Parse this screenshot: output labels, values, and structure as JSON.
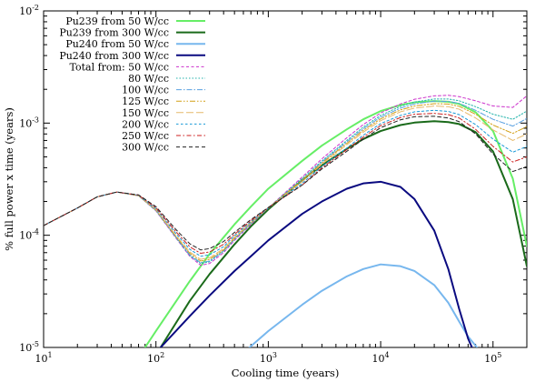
{
  "chart_data": {
    "type": "line",
    "xlabel": "Cooling time (years)",
    "ylabel": "% full power x time (years)",
    "xscale": "log",
    "yscale": "log",
    "xlim": [
      10,
      200000
    ],
    "ylim": [
      1e-05,
      0.01
    ],
    "x_ticks": [
      {
        "value": 10,
        "base": "10",
        "exp": "1"
      },
      {
        "value": 100,
        "base": "10",
        "exp": "2"
      },
      {
        "value": 1000,
        "base": "10",
        "exp": "3"
      },
      {
        "value": 10000,
        "base": "10",
        "exp": "4"
      },
      {
        "value": 100000,
        "base": "10",
        "exp": "5"
      }
    ],
    "y_ticks": [
      {
        "value": 1e-05,
        "base": "10",
        "exp": "-5"
      },
      {
        "value": 0.0001,
        "base": "10",
        "exp": "-4"
      },
      {
        "value": 0.001,
        "base": "10",
        "exp": "-3"
      },
      {
        "value": 0.01,
        "base": "10",
        "exp": "-2"
      }
    ],
    "grid": false,
    "legend_position": "top-left",
    "series": [
      {
        "name": "Pu239 from 50 W/cc",
        "color": "#66ee66",
        "dash": "solid",
        "width": 2,
        "x": [
          80,
          100,
          200,
          300,
          500,
          700,
          1000,
          2000,
          3000,
          5000,
          7000,
          10000,
          15000,
          20000,
          30000,
          40000,
          50000,
          70000,
          100000,
          150000,
          200000
        ],
        "y": [
          1e-05,
          1.4e-05,
          3.9e-05,
          6.8e-05,
          0.000125,
          0.00018,
          0.00026,
          0.00046,
          0.00063,
          0.00088,
          0.00108,
          0.00128,
          0.00145,
          0.00153,
          0.00157,
          0.00155,
          0.00148,
          0.00125,
          0.00085,
          0.00032,
          8e-05
        ]
      },
      {
        "name": "Pu239 from 300 W/cc",
        "color": "#1a6a1a",
        "dash": "solid",
        "width": 2,
        "x": [
          110,
          200,
          300,
          500,
          700,
          1000,
          2000,
          3000,
          5000,
          7000,
          10000,
          15000,
          20000,
          30000,
          40000,
          50000,
          70000,
          100000,
          150000,
          200000
        ],
        "y": [
          1e-05,
          2.6e-05,
          4.5e-05,
          8.3e-05,
          0.00012,
          0.00017,
          0.00031,
          0.00042,
          0.00059,
          0.00072,
          0.00085,
          0.00096,
          0.00101,
          0.00104,
          0.00102,
          0.00098,
          0.00083,
          0.00056,
          0.00021,
          5.3e-05
        ]
      },
      {
        "name": "Pu240 from 50 W/cc",
        "color": "#77b7ee",
        "dash": "solid",
        "width": 2,
        "x": [
          680,
          1000,
          2000,
          3000,
          5000,
          7000,
          10000,
          15000,
          20000,
          30000,
          40000,
          50000,
          60000,
          72000
        ],
        "y": [
          1e-05,
          1.4e-05,
          2.4e-05,
          3.2e-05,
          4.3e-05,
          5e-05,
          5.5e-05,
          5.3e-05,
          4.8e-05,
          3.6e-05,
          2.5e-05,
          1.7e-05,
          1.25e-05,
          1e-05
        ]
      },
      {
        "name": "Pu240 from 300 W/cc",
        "color": "#0a0a80",
        "dash": "solid",
        "width": 2,
        "x": [
          110,
          200,
          300,
          500,
          700,
          1000,
          2000,
          3000,
          5000,
          7000,
          10000,
          15000,
          20000,
          30000,
          40000,
          50000,
          60000,
          65000
        ],
        "y": [
          1e-05,
          1.9e-05,
          2.9e-05,
          4.8e-05,
          6.5e-05,
          9e-05,
          0.000155,
          0.0002,
          0.00026,
          0.00029,
          0.0003,
          0.00027,
          0.00021,
          0.00011,
          5e-05,
          2.2e-05,
          1.2e-05,
          1e-05
        ]
      },
      {
        "name": "Total from: 50 W/cc",
        "color": "#cc33cc",
        "dash": "3,2.5",
        "width": 1,
        "x": [
          10,
          20,
          30,
          45,
          70,
          100,
          150,
          200,
          250,
          300,
          400,
          500,
          700,
          1000,
          2000,
          3000,
          5000,
          7000,
          10000,
          15000,
          20000,
          30000,
          40000,
          50000,
          70000,
          100000,
          150000,
          200000
        ],
        "y": [
          0.000122,
          0.000175,
          0.00022,
          0.000243,
          0.000225,
          0.000165,
          9.5e-05,
          6.5e-05,
          5.4e-05,
          5.6e-05,
          7e-05,
          9e-05,
          0.000125,
          0.000175,
          0.00033,
          0.00048,
          0.00074,
          0.00097,
          0.00123,
          0.00148,
          0.00163,
          0.00175,
          0.00177,
          0.00172,
          0.00158,
          0.00142,
          0.00138,
          0.00175
        ]
      },
      {
        "name": "80 W/cc",
        "color": "#20b2aa",
        "dash": "1.5,2",
        "width": 1,
        "x": [
          10,
          20,
          30,
          45,
          70,
          100,
          150,
          200,
          250,
          300,
          400,
          500,
          700,
          1000,
          2000,
          3000,
          5000,
          7000,
          10000,
          15000,
          20000,
          30000,
          40000,
          50000,
          70000,
          100000,
          150000,
          200000
        ],
        "y": [
          0.000122,
          0.000175,
          0.00022,
          0.000243,
          0.000225,
          0.000166,
          9.6e-05,
          6.6e-05,
          5.6e-05,
          5.8e-05,
          7.2e-05,
          9.2e-05,
          0.000127,
          0.000175,
          0.00032,
          0.00046,
          0.0007,
          0.00092,
          0.00117,
          0.00141,
          0.00154,
          0.00164,
          0.00164,
          0.00158,
          0.0014,
          0.0012,
          0.00108,
          0.00128
        ]
      },
      {
        "name": "100 W/cc",
        "color": "#5aa0e0",
        "dash": "6,2,1.5,2",
        "width": 1,
        "x": [
          10,
          20,
          30,
          45,
          70,
          100,
          150,
          200,
          250,
          300,
          400,
          500,
          700,
          1000,
          2000,
          3000,
          5000,
          7000,
          10000,
          15000,
          20000,
          30000,
          40000,
          50000,
          70000,
          100000,
          150000,
          200000
        ],
        "y": [
          0.000122,
          0.000175,
          0.00022,
          0.000243,
          0.000225,
          0.000167,
          9.7e-05,
          6.7e-05,
          5.7e-05,
          5.9e-05,
          7.3e-05,
          9.3e-05,
          0.000128,
          0.000175,
          0.00031,
          0.00045,
          0.00068,
          0.00089,
          0.00113,
          0.00136,
          0.00148,
          0.00157,
          0.00156,
          0.0015,
          0.0013,
          0.00108,
          0.00094,
          0.0011
        ]
      },
      {
        "name": "125 W/cc",
        "color": "#d4a017",
        "dash": "6,2,1.5,2,1.5,2",
        "width": 1,
        "x": [
          10,
          20,
          30,
          45,
          70,
          100,
          150,
          200,
          250,
          300,
          400,
          500,
          700,
          1000,
          2000,
          3000,
          5000,
          7000,
          10000,
          15000,
          20000,
          30000,
          40000,
          50000,
          70000,
          100000,
          150000,
          200000
        ],
        "y": [
          0.000122,
          0.000175,
          0.00022,
          0.000243,
          0.000225,
          0.000168,
          9.8e-05,
          6.9e-05,
          5.9e-05,
          6.1e-05,
          7.4e-05,
          9.4e-05,
          0.000129,
          0.000175,
          0.00031,
          0.00044,
          0.00066,
          0.00086,
          0.00109,
          0.00131,
          0.00142,
          0.00149,
          0.00148,
          0.00141,
          0.0012,
          0.00096,
          0.00081,
          0.00093
        ]
      },
      {
        "name": "150 W/cc",
        "color": "#e6b96a",
        "dash": "8,3",
        "width": 1,
        "x": [
          10,
          20,
          30,
          45,
          70,
          100,
          150,
          200,
          250,
          300,
          400,
          500,
          700,
          1000,
          2000,
          3000,
          5000,
          7000,
          10000,
          15000,
          20000,
          30000,
          40000,
          50000,
          70000,
          100000,
          150000,
          200000
        ],
        "y": [
          0.000122,
          0.000175,
          0.00022,
          0.000243,
          0.000226,
          0.00017,
          0.0001,
          7.1e-05,
          6.1e-05,
          6.3e-05,
          7.6e-05,
          9.6e-05,
          0.00013,
          0.000175,
          0.0003,
          0.00043,
          0.00064,
          0.00083,
          0.00105,
          0.00126,
          0.00136,
          0.00142,
          0.0014,
          0.00133,
          0.00111,
          0.00087,
          0.0007,
          0.0008
        ]
      },
      {
        "name": "200 W/cc",
        "color": "#1a9ad8",
        "dash": "2.5,2.5",
        "width": 1,
        "x": [
          10,
          20,
          30,
          45,
          70,
          100,
          150,
          200,
          250,
          300,
          400,
          500,
          700,
          1000,
          2000,
          3000,
          5000,
          7000,
          10000,
          15000,
          20000,
          30000,
          40000,
          50000,
          70000,
          100000,
          150000,
          200000
        ],
        "y": [
          0.000122,
          0.000175,
          0.00022,
          0.000243,
          0.000227,
          0.000173,
          0.000104,
          7.5e-05,
          6.5e-05,
          6.7e-05,
          7.9e-05,
          9.9e-05,
          0.000132,
          0.000175,
          0.00029,
          0.00041,
          0.0006,
          0.00078,
          0.00099,
          0.00117,
          0.00126,
          0.0013,
          0.00127,
          0.00119,
          0.00097,
          0.00072,
          0.00055,
          0.00062
        ]
      },
      {
        "name": "250 W/cc",
        "color": "#cc2222",
        "dash": "5,2.5,1.5,2.5",
        "width": 1,
        "x": [
          10,
          20,
          30,
          45,
          70,
          100,
          150,
          200,
          250,
          300,
          400,
          500,
          700,
          1000,
          2000,
          3000,
          5000,
          7000,
          10000,
          15000,
          20000,
          30000,
          40000,
          50000,
          70000,
          100000,
          150000,
          200000
        ],
        "y": [
          0.000122,
          0.000175,
          0.00022,
          0.000243,
          0.000228,
          0.000176,
          0.000108,
          7.9e-05,
          6.9e-05,
          7.1e-05,
          8.3e-05,
          0.000102,
          0.000135,
          0.000176,
          0.00028,
          0.0004,
          0.00058,
          0.00075,
          0.00095,
          0.00112,
          0.0012,
          0.00122,
          0.00119,
          0.00111,
          0.00088,
          0.00062,
          0.00045,
          0.0005
        ]
      },
      {
        "name": "300 W/cc",
        "color": "#222222",
        "dash": "4,3",
        "width": 1,
        "x": [
          10,
          20,
          30,
          45,
          70,
          100,
          150,
          200,
          250,
          300,
          400,
          500,
          700,
          1000,
          2000,
          3000,
          5000,
          7000,
          10000,
          15000,
          20000,
          30000,
          40000,
          50000,
          70000,
          100000,
          150000,
          200000
        ],
        "y": [
          0.000122,
          0.000175,
          0.00022,
          0.000243,
          0.000229,
          0.00018,
          0.000113,
          8.4e-05,
          7.4e-05,
          7.6e-05,
          8.8e-05,
          0.000106,
          0.000138,
          0.000177,
          0.00028,
          0.00039,
          0.00056,
          0.00072,
          0.00091,
          0.00107,
          0.00114,
          0.00115,
          0.00111,
          0.00103,
          0.0008,
          0.00053,
          0.00037,
          0.00041
        ]
      }
    ]
  }
}
